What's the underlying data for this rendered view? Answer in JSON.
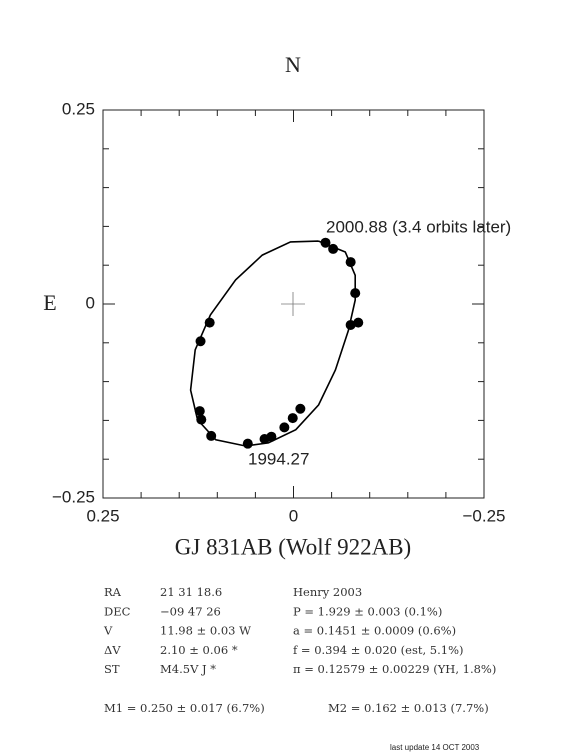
{
  "chart_data": {
    "type": "scatter",
    "title": "GJ 831AB (Wolf 922AB)",
    "axis_labels": {
      "north": "N",
      "east": "E"
    },
    "annotations": [
      "2000.88 (3.4 orbits later)",
      "1994.27"
    ],
    "xlim": [
      0.25,
      -0.25
    ],
    "ylim": [
      -0.25,
      0.25
    ],
    "xticks": [
      0.25,
      0,
      {
        "value": -0.25,
        "label": "−0.25"
      }
    ],
    "yticks": [
      {
        "value": -0.25,
        "label": "−0.25"
      },
      0,
      0.25
    ],
    "minorticks": [
      -0.2,
      -0.15,
      -0.1,
      -0.05,
      0.05,
      0.1,
      0.15,
      0.2
    ],
    "color": "#000000",
    "points": {
      "x": [
        -0.042,
        -0.052,
        -0.075,
        -0.081,
        -0.075,
        -0.085,
        0.11,
        0.122,
        0.123,
        0.121,
        0.108,
        0.06,
        0.038,
        0.029,
        0.012,
        0.001,
        -0.009
      ],
      "y": [
        0.079,
        0.071,
        0.054,
        0.014,
        -0.027,
        -0.024,
        -0.024,
        -0.048,
        -0.138,
        -0.149,
        -0.17,
        -0.18,
        -0.174,
        -0.171,
        -0.159,
        -0.147,
        -0.135
      ]
    },
    "orbit": {
      "x": [
        -0.033,
        -0.068,
        -0.081,
        -0.081,
        -0.072,
        -0.055,
        -0.033,
        -0.003,
        0.033,
        0.063,
        0.102,
        0.126,
        0.135,
        0.129,
        0.109,
        0.076,
        0.041,
        0.004,
        -0.033
      ],
      "y": [
        0.081,
        0.067,
        0.037,
        0.005,
        -0.034,
        -0.085,
        -0.13,
        -0.162,
        -0.179,
        -0.183,
        -0.175,
        -0.149,
        -0.111,
        -0.059,
        -0.014,
        0.031,
        0.063,
        0.08,
        0.081
      ]
    }
  },
  "info": {
    "rows": [
      [
        "RA",
        "21 31 18.6",
        "Henry 2003"
      ],
      [
        "DEC",
        "−09 47 26",
        "P = 1.929 ± 0.003 (0.1%)"
      ],
      [
        "V",
        "11.98 ± 0.03 W",
        "a = 0.1451 ± 0.0009 (0.6%)"
      ],
      [
        "ΔV",
        "2.10 ± 0.06 *",
        "f = 0.394 ± 0.020 (est, 5.1%)"
      ],
      [
        "ST",
        "M4.5V J *",
        "π = 0.12579 ± 0.00229 (YH, 1.8%)"
      ]
    ],
    "masses": [
      "M1 = 0.250 ± 0.017 (6.7%)",
      "M2 = 0.162 ± 0.013 (7.7%)"
    ],
    "footer": "last update 14 OCT 2003"
  }
}
